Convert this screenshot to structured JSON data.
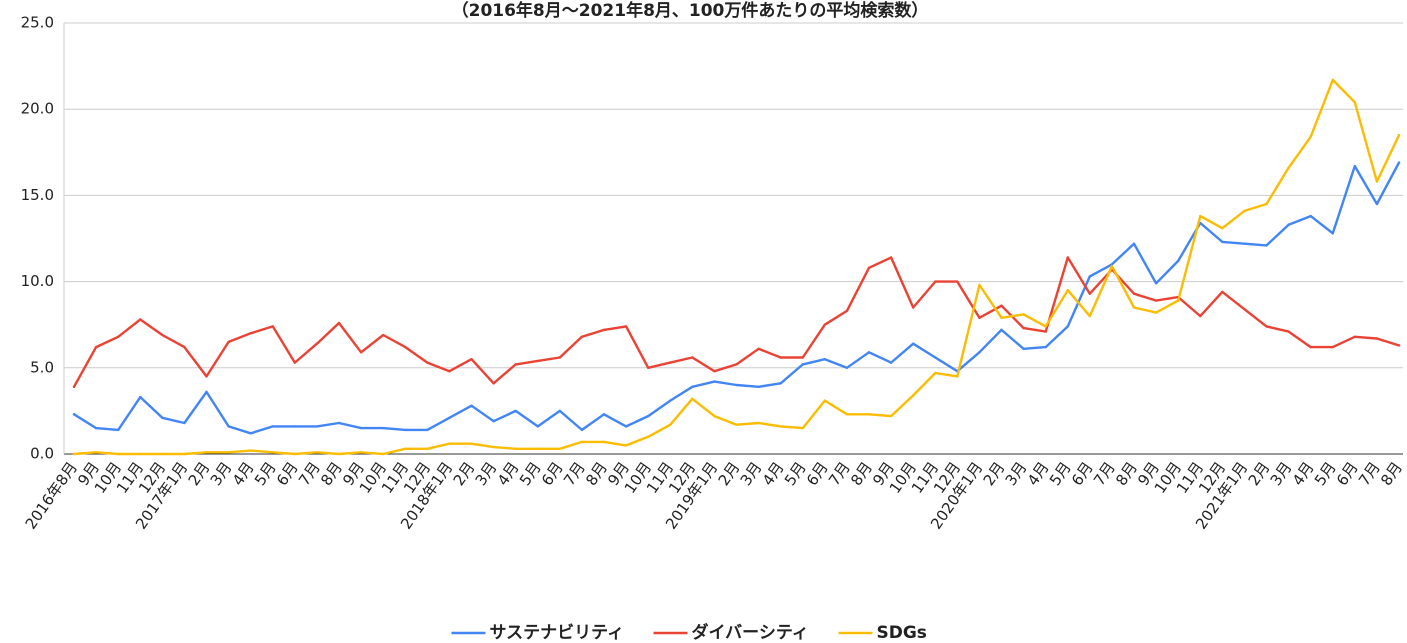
{
  "chart_data": {
    "type": "line",
    "title": "（2016年8月～2021年8月、100万件あたりの平均検索数）",
    "xlabel": "",
    "ylabel": "",
    "ylim": [
      0,
      25
    ],
    "y_ticks": [
      "0.0",
      "5.0",
      "10.0",
      "15.0",
      "20.0",
      "25.0"
    ],
    "grid": true,
    "legend_position": "bottom",
    "x": [
      "2016年8月",
      "9月",
      "10月",
      "11月",
      "12月",
      "2017年1月",
      "2月",
      "3月",
      "4月",
      "5月",
      "6月",
      "7月",
      "8月",
      "9月",
      "10月",
      "11月",
      "12月",
      "2018年1月",
      "2月",
      "3月",
      "4月",
      "5月",
      "6月",
      "7月",
      "8月",
      "9月",
      "10月",
      "11月",
      "12月",
      "2019年1月",
      "2月",
      "3月",
      "4月",
      "5月",
      "6月",
      "7月",
      "8月",
      "9月",
      "10月",
      "11月",
      "12月",
      "2020年1月",
      "2月",
      "3月",
      "4月",
      "5月",
      "6月",
      "7月",
      "8月",
      "9月",
      "10月",
      "11月",
      "12月",
      "2021年1月",
      "2月",
      "3月",
      "4月",
      "5月",
      "6月",
      "7月",
      "8月"
    ],
    "series": [
      {
        "name": "サステナビリティ",
        "color": "#4285F4",
        "values": [
          2.3,
          1.5,
          1.4,
          3.3,
          2.1,
          1.8,
          3.6,
          1.6,
          1.2,
          1.6,
          1.6,
          1.6,
          1.8,
          1.5,
          1.5,
          1.4,
          1.4,
          2.1,
          2.8,
          1.9,
          2.5,
          1.6,
          2.5,
          1.4,
          2.3,
          1.6,
          2.2,
          3.1,
          3.9,
          4.2,
          4.0,
          3.9,
          4.1,
          5.2,
          5.5,
          5.0,
          5.9,
          5.3,
          6.4,
          5.6,
          4.8,
          5.9,
          7.2,
          6.1,
          6.2,
          7.4,
          10.3,
          11.0,
          12.2,
          9.9,
          11.2,
          13.4,
          12.3,
          12.2,
          12.1,
          13.3,
          13.8,
          12.8,
          16.7,
          14.5,
          16.9
        ]
      },
      {
        "name": "ダイバーシティ",
        "color": "#EA4335",
        "values": [
          3.9,
          6.2,
          6.8,
          7.8,
          6.9,
          6.2,
          4.5,
          6.5,
          7.0,
          7.4,
          5.3,
          6.4,
          7.6,
          5.9,
          6.9,
          6.2,
          5.3,
          4.8,
          5.5,
          4.1,
          5.2,
          5.4,
          5.6,
          6.8,
          7.2,
          7.4,
          5.0,
          5.3,
          5.6,
          4.8,
          5.2,
          6.1,
          5.6,
          5.6,
          7.5,
          8.3,
          10.8,
          11.4,
          8.5,
          10.0,
          10.0,
          7.9,
          8.6,
          7.3,
          7.1,
          11.4,
          9.3,
          10.7,
          9.3,
          8.9,
          9.1,
          8.0,
          9.4,
          8.4,
          7.4,
          7.1,
          6.2,
          6.2,
          6.8,
          6.7,
          6.3
        ]
      },
      {
        "name": "SDGs",
        "color": "#FBBC04",
        "values": [
          0.0,
          0.1,
          0.0,
          0.0,
          0.0,
          0.0,
          0.1,
          0.1,
          0.2,
          0.1,
          0.0,
          0.1,
          0.0,
          0.1,
          0.0,
          0.3,
          0.3,
          0.6,
          0.6,
          0.4,
          0.3,
          0.3,
          0.3,
          0.7,
          0.7,
          0.5,
          1.0,
          1.7,
          3.2,
          2.2,
          1.7,
          1.8,
          1.6,
          1.5,
          3.1,
          2.3,
          2.3,
          2.2,
          3.4,
          4.7,
          4.5,
          9.8,
          7.9,
          8.1,
          7.4,
          9.5,
          8.0,
          10.9,
          8.5,
          8.2,
          8.9,
          13.8,
          13.1,
          14.1,
          14.5,
          16.6,
          18.4,
          21.7,
          20.4,
          15.8,
          18.5
        ]
      }
    ]
  }
}
